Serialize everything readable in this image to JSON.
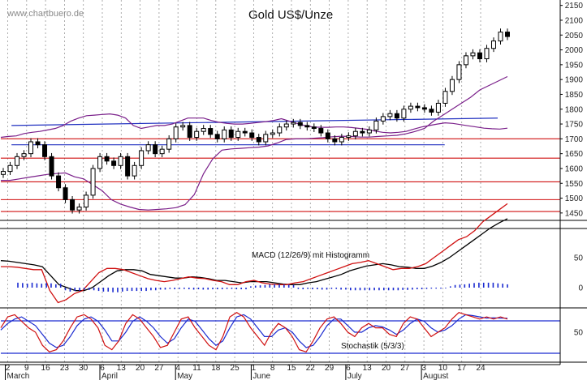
{
  "chart_data": [
    {
      "type": "candlestick",
      "title": "Gold US$/Unze",
      "watermark": "www.chartbuero.de",
      "ylim": [
        1425,
        2160
      ],
      "y_ticks": [
        1450,
        1500,
        1550,
        1600,
        1650,
        1700,
        1750,
        1800,
        1850,
        1900,
        1950,
        2000,
        2050,
        2100,
        2150
      ],
      "support_resistance_levels": [
        1455,
        1495,
        1555,
        1635,
        1700
      ],
      "channel_lines": [
        {
          "start": [
            1,
            1745
          ],
          "end": [
            37,
            1770
          ]
        },
        {
          "start": [
            1,
            1680
          ],
          "end": [
            33,
            1680
          ]
        }
      ],
      "close_series": [
        1590,
        1610,
        1640,
        1650,
        1690,
        1680,
        1640,
        1575,
        1535,
        1495,
        1460,
        1470,
        1510,
        1600,
        1640,
        1625,
        1610,
        1640,
        1575,
        1610,
        1660,
        1680,
        1650,
        1665,
        1700,
        1740,
        1745,
        1705,
        1725,
        1735,
        1715,
        1700,
        1730,
        1705,
        1725,
        1720,
        1705,
        1690,
        1715,
        1720,
        1740,
        1750,
        1755,
        1745,
        1740,
        1735,
        1720,
        1700,
        1690,
        1705,
        1710,
        1725,
        1720,
        1730,
        1760,
        1775,
        1785,
        1770,
        1800,
        1810,
        1805,
        1800,
        1790,
        1820,
        1860,
        1900,
        1950,
        1980,
        1990,
        1970,
        2005,
        2030,
        2060,
        2045
      ],
      "bollinger_upper": [
        1705,
        1708,
        1710,
        1718,
        1722,
        1725,
        1730,
        1735,
        1745,
        1760,
        1770,
        1778,
        1780,
        1782,
        1784,
        1780,
        1770,
        1745,
        1735,
        1740,
        1745,
        1745,
        1750,
        1760,
        1770,
        1770,
        1770,
        1762,
        1756,
        1752,
        1750,
        1750,
        1752,
        1755,
        1758,
        1762,
        1768,
        1760,
        1752,
        1745,
        1740,
        1739,
        1739,
        1740,
        1740,
        1738,
        1735,
        1732,
        1726,
        1722,
        1720,
        1722,
        1725,
        1733,
        1740,
        1745,
        1750,
        1754,
        1752,
        1748,
        1744,
        1740,
        1736,
        1734,
        1733,
        1736
      ],
      "bollinger_lower": [
        1560,
        1560,
        1565,
        1570,
        1575,
        1580,
        1583,
        1585,
        1572,
        1565,
        1545,
        1525,
        1495,
        1480,
        1470,
        1462,
        1460,
        1462,
        1464,
        1468,
        1478,
        1512,
        1582,
        1632,
        1662,
        1666,
        1668,
        1670,
        1672,
        1676,
        1686,
        1698,
        1700,
        1700,
        1702,
        1704,
        1707,
        1709,
        1708,
        1706,
        1706,
        1708,
        1710,
        1712,
        1717,
        1725,
        1735,
        1760,
        1780,
        1800,
        1820,
        1840,
        1865,
        1880,
        1895,
        1910
      ],
      "macd_line": [
        35,
        35,
        34,
        32,
        30,
        30,
        -5,
        -25,
        -20,
        -10,
        -5,
        10,
        25,
        32,
        32,
        30,
        25,
        20,
        15,
        12,
        10,
        12,
        15,
        18,
        16,
        15,
        12,
        10,
        5,
        5,
        10,
        12,
        8,
        6,
        5,
        5,
        8,
        10,
        15,
        20,
        25,
        30,
        35,
        40,
        42,
        45,
        40,
        35,
        30,
        32,
        32,
        35,
        40,
        50,
        60,
        70,
        80,
        85,
        95,
        110,
        120,
        130,
        140
      ],
      "macd_signal": [
        45,
        44,
        42,
        40,
        38,
        35,
        20,
        5,
        0,
        -5,
        -5,
        0,
        10,
        20,
        28,
        30,
        30,
        28,
        22,
        20,
        18,
        16,
        16,
        18,
        17,
        15,
        12,
        12,
        10,
        8,
        10,
        10,
        10,
        8,
        6,
        5,
        5,
        8,
        10,
        14,
        18,
        22,
        28,
        32,
        36,
        38,
        40,
        38,
        35,
        34,
        32,
        32,
        36,
        42,
        50,
        60,
        70,
        80,
        90,
        100,
        108,
        115
      ],
      "histogram": [
        15,
        14,
        12,
        15,
        13,
        12,
        14,
        13,
        10,
        12,
        -8,
        -12,
        -10,
        -10,
        -6,
        -7,
        -8,
        -10,
        -12,
        -12,
        -14,
        -14,
        -12,
        -10,
        -10,
        -10,
        -10,
        -10,
        -8,
        -8,
        -6,
        -6,
        -4,
        -5,
        -4,
        -4,
        -5,
        -6,
        -5,
        -6,
        -6,
        -5,
        -5,
        -5,
        -4,
        -4,
        -5,
        -5,
        -5,
        4,
        6,
        7,
        8,
        10,
        10,
        10,
        9,
        9,
        8,
        -4,
        -5,
        -4,
        -5,
        -5,
        -6,
        -6,
        -4,
        -4,
        -6,
        -6,
        -8,
        -8,
        -8,
        -8,
        -8,
        -8,
        -8,
        -8,
        -8,
        -8,
        -8,
        -7,
        -7,
        -6,
        -5,
        -5,
        -4,
        -3,
        -3,
        -3,
        -2,
        4,
        8,
        9,
        10,
        12,
        14,
        15,
        15,
        15,
        15,
        13,
        12,
        10
      ],
      "stochastic_k": [
        60,
        85,
        90,
        75,
        60,
        50,
        20,
        5,
        10,
        30,
        60,
        85,
        90,
        80,
        60,
        20,
        10,
        30,
        70,
        90,
        80,
        60,
        40,
        15,
        20,
        50,
        80,
        85,
        60,
        40,
        20,
        10,
        40,
        85,
        95,
        85,
        60,
        40,
        20,
        50,
        70,
        60,
        40,
        10,
        5,
        30,
        60,
        80,
        85,
        70,
        50,
        40,
        60,
        70,
        60,
        60,
        45,
        40,
        70,
        85,
        80,
        60,
        40,
        50,
        60,
        80,
        95,
        90,
        85,
        80,
        85,
        80,
        85,
        80
      ],
      "stochastic_d": [
        55,
        70,
        80,
        85,
        75,
        65,
        45,
        25,
        15,
        20,
        40,
        65,
        80,
        85,
        75,
        55,
        30,
        30,
        50,
        75,
        85,
        75,
        60,
        40,
        25,
        35,
        60,
        80,
        75,
        55,
        35,
        20,
        30,
        60,
        85,
        90,
        80,
        60,
        40,
        40,
        55,
        60,
        50,
        30,
        15,
        20,
        40,
        65,
        80,
        80,
        65,
        50,
        50,
        60,
        65,
        62,
        55,
        45,
        55,
        70,
        80,
        75,
        60,
        50,
        55,
        65,
        80,
        90,
        88,
        85,
        82,
        83,
        82,
        82
      ]
    }
  ],
  "macd_label": "MACD (12/26/9) mit Histogramm",
  "macd_ticks": [
    50,
    0
  ],
  "stoch_label": "Stochastik (5/3/3)",
  "stoch_ticks": [
    50
  ],
  "x_day_labels": [
    "2",
    "9",
    "16",
    "23",
    "30",
    "6",
    "13",
    "20",
    "27",
    "4",
    "11",
    "18",
    "25",
    "1",
    "8",
    "15",
    "22",
    "29",
    "6",
    "13",
    "20",
    "27",
    "3",
    "10",
    "17",
    "24"
  ],
  "x_month_labels": [
    "March",
    "April",
    "May",
    "June",
    "July",
    "August"
  ]
}
